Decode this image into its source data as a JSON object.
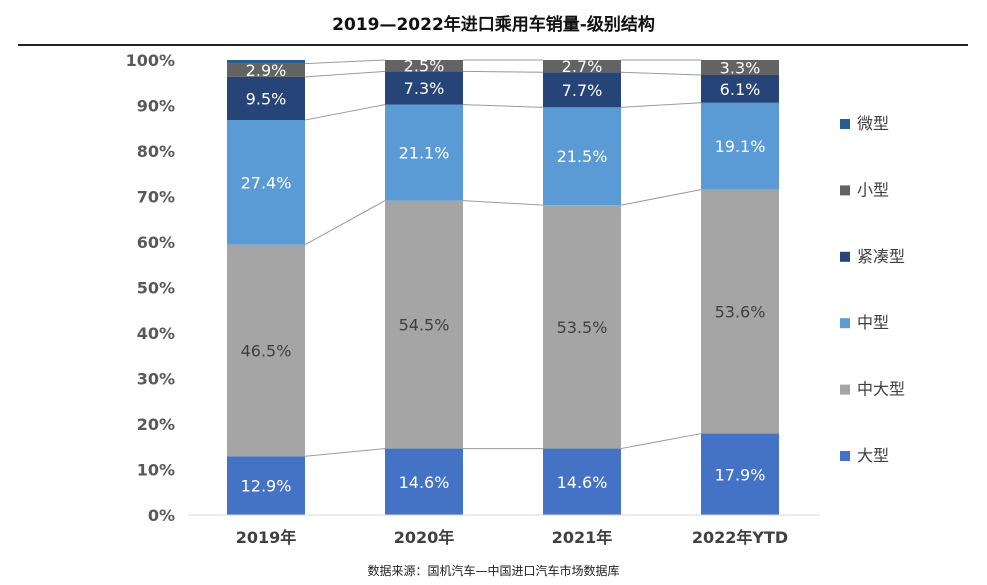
{
  "title": "2019—2022年进口乘用车销量-级别结构",
  "source": "数据来源：国机汽车—中国进口汽车市场数据库",
  "chart_data": {
    "type": "bar",
    "stacked": true,
    "percent": true,
    "categories": [
      "2019年",
      "2020年",
      "2021年",
      "2022年YTD"
    ],
    "series": [
      {
        "name": "大型",
        "color": "#4472C4",
        "values": [
          12.9,
          14.6,
          14.6,
          17.9
        ],
        "labels": [
          "12.9%",
          "14.6%",
          "14.6%",
          "17.9%"
        ]
      },
      {
        "name": "中大型",
        "color": "#A5A5A5",
        "values": [
          46.5,
          54.5,
          53.5,
          53.6
        ],
        "labels": [
          "46.5%",
          "54.5%",
          "53.5%",
          "53.6%"
        ]
      },
      {
        "name": "中型",
        "color": "#5B9BD5",
        "values": [
          27.4,
          21.1,
          21.5,
          19.1
        ],
        "labels": [
          "27.4%",
          "21.1%",
          "21.5%",
          "19.1%"
        ]
      },
      {
        "name": "紧凑型",
        "color": "#264478",
        "values": [
          9.5,
          7.3,
          7.7,
          6.1
        ],
        "labels": [
          "9.5%",
          "7.3%",
          "7.7%",
          "6.1%"
        ]
      },
      {
        "name": "小型",
        "color": "#636363",
        "values": [
          2.9,
          2.5,
          2.7,
          3.3
        ],
        "labels": [
          "2.9%",
          "2.5%",
          "2.7%",
          "3.3%"
        ]
      },
      {
        "name": "微型",
        "color": "#255E91",
        "values": [
          0.8,
          0.0,
          0.0,
          0.0
        ],
        "labels": [
          "",
          "",
          "",
          ""
        ]
      }
    ],
    "ylim": [
      0,
      100
    ],
    "yticks": [
      "0%",
      "10%",
      "20%",
      "30%",
      "40%",
      "50%",
      "60%",
      "70%",
      "80%",
      "90%",
      "100%"
    ],
    "legend_order": [
      "微型",
      "小型",
      "紧凑型",
      "中型",
      "中大型",
      "大型"
    ],
    "legend_position": "right",
    "series_lines": true,
    "grid": false
  }
}
